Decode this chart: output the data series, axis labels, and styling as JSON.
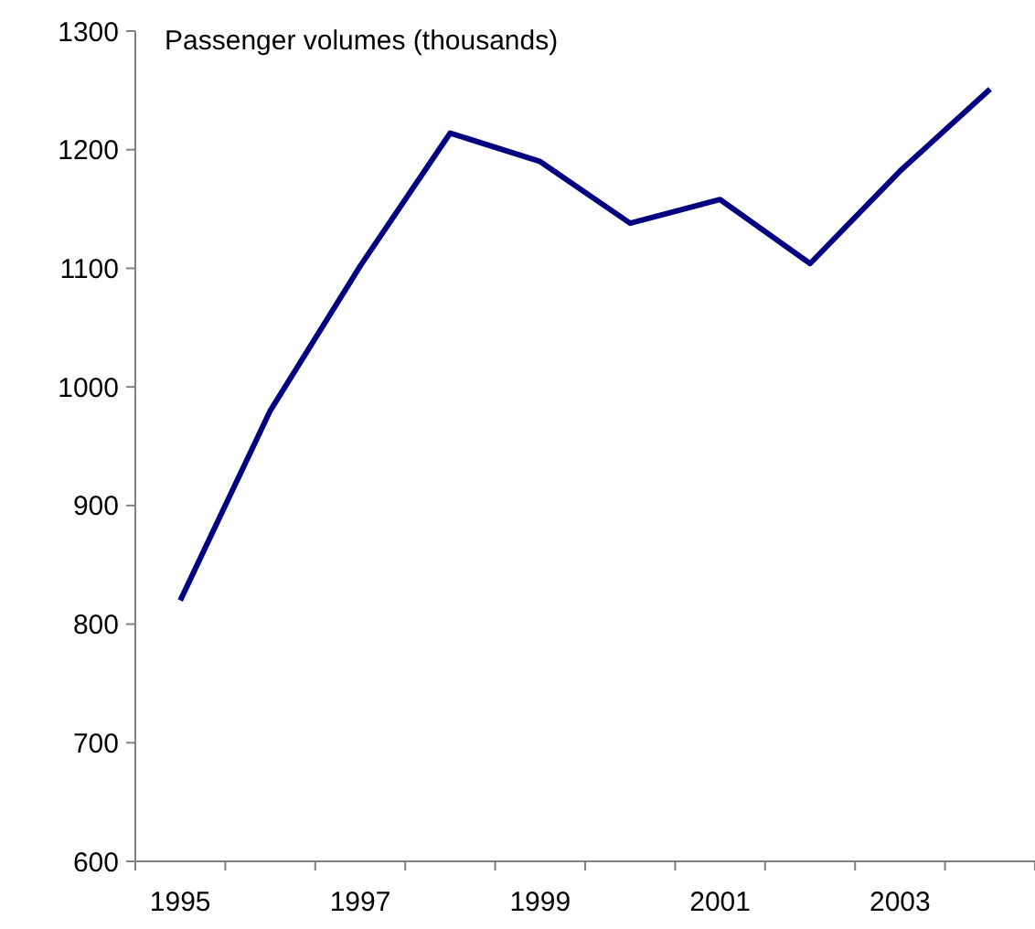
{
  "chart_data": {
    "type": "line",
    "title": "Passenger volumes (thousands)",
    "categories": [
      "1995",
      null,
      "1997",
      null,
      "1999",
      null,
      "2001",
      null,
      "2003",
      null
    ],
    "series": [
      {
        "color": "#000080",
        "values": [
          820,
          980,
          1102,
          1214,
          1190,
          1138,
          1158,
          1104,
          1182,
          1251
        ]
      }
    ],
    "ylim": [
      600,
      1300
    ],
    "yticks": [
      600,
      700,
      800,
      900,
      1000,
      1100,
      1200,
      1300
    ],
    "marker": "none",
    "line_style": "solid"
  }
}
